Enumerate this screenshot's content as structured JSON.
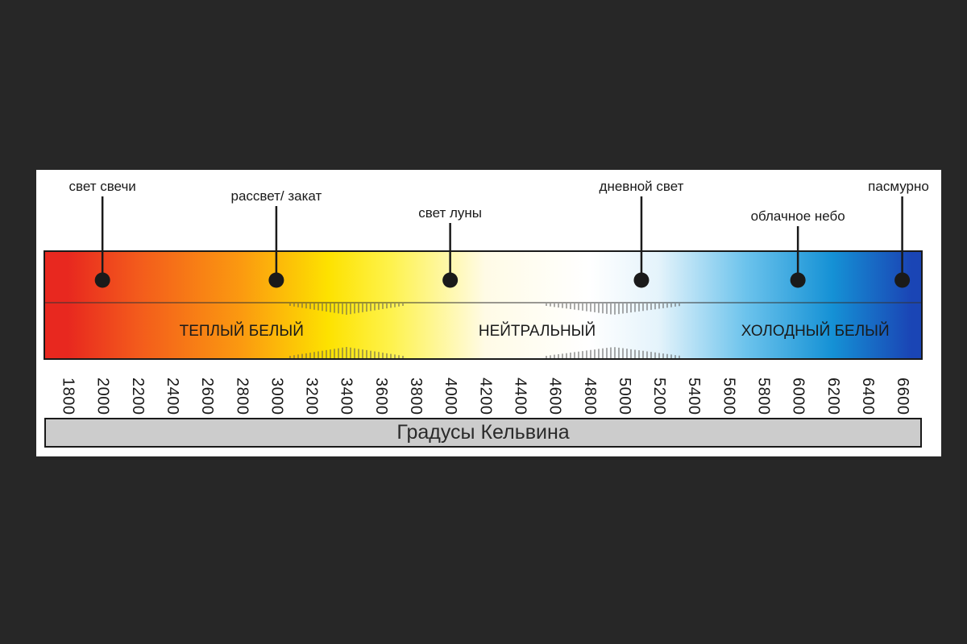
{
  "scale": {
    "min": 1800,
    "max": 6600,
    "ticks": [
      1800,
      2000,
      2200,
      2400,
      2600,
      2800,
      3000,
      3200,
      3400,
      3600,
      3800,
      4000,
      4200,
      4400,
      4600,
      4800,
      5000,
      5200,
      5400,
      5600,
      5800,
      6000,
      6200,
      6400,
      6600
    ],
    "unit_label": "Градусы Кельвина"
  },
  "annotations": [
    {
      "label": "свет свечи",
      "kelvin": 2000
    },
    {
      "label": "рассвет/ закат",
      "kelvin": 3000
    },
    {
      "label": "свет луны",
      "kelvin": 4000
    },
    {
      "label": "дневной свет",
      "kelvin": 5100
    },
    {
      "label": "облачное небо",
      "kelvin": 6000
    },
    {
      "label": "пасмурно",
      "kelvin": 6600
    }
  ],
  "zones": [
    {
      "label": "ТЕПЛЫЙ БЕЛЫЙ",
      "center_kelvin": 2800
    },
    {
      "label": "НЕЙТРАЛЬНЫЙ",
      "center_kelvin": 4500
    },
    {
      "label": "ХОЛОДНЫЙ БЕЛЫЙ",
      "center_kelvin": 6100
    }
  ],
  "gradient_colors": [
    {
      "kelvin": 1800,
      "color": "#e8281f"
    },
    {
      "kelvin": 2200,
      "color": "#f35a1c"
    },
    {
      "kelvin": 2800,
      "color": "#fb9a10"
    },
    {
      "kelvin": 3300,
      "color": "#fde200"
    },
    {
      "kelvin": 3650,
      "color": "#fef24a"
    },
    {
      "kelvin": 4200,
      "color": "#fffbe6"
    },
    {
      "kelvin": 4800,
      "color": "#ffffff"
    },
    {
      "kelvin": 5200,
      "color": "#e4f3fb"
    },
    {
      "kelvin": 5700,
      "color": "#6cc3ec"
    },
    {
      "kelvin": 6200,
      "color": "#1591d5"
    },
    {
      "kelvin": 6650,
      "color": "#1a45b5"
    }
  ],
  "colors": {
    "background": "#272727",
    "card": "#ffffff",
    "ink": "#1a1a1a",
    "footer": "#cccccc"
  }
}
